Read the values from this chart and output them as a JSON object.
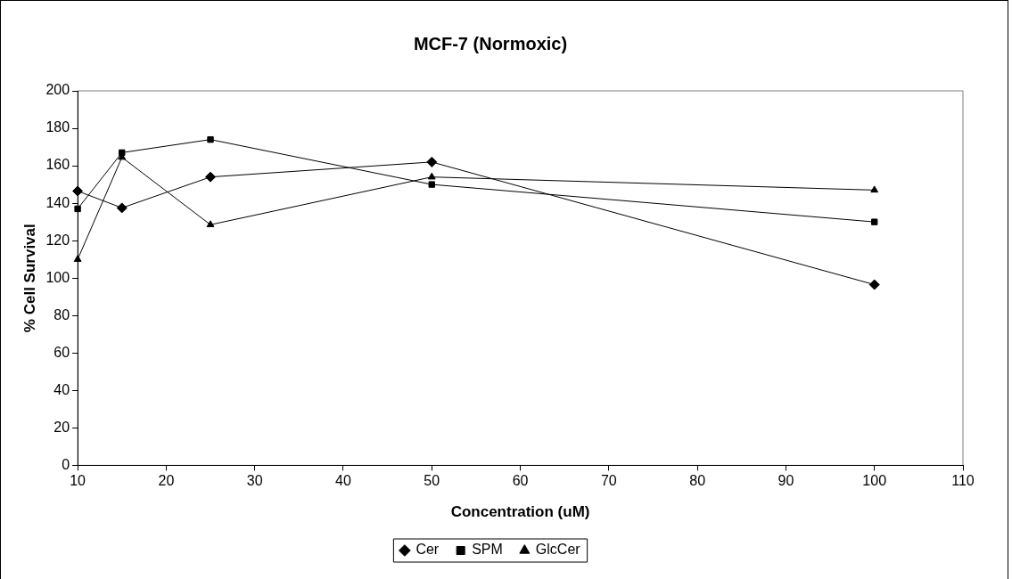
{
  "chart_data": {
    "type": "line",
    "title": "MCF-7 (Normoxic)",
    "xlabel": "Concentration (uM)",
    "ylabel": "% Cell Survival",
    "x": [
      10,
      15,
      25,
      50,
      100
    ],
    "series": [
      {
        "name": "Cer",
        "color": "#000000",
        "marker": "diamond",
        "values": [
          146.5,
          137.5,
          154,
          162,
          96.5
        ]
      },
      {
        "name": "SPM",
        "color": "#000000",
        "marker": "square",
        "values": [
          137,
          167,
          174,
          150,
          130
        ]
      },
      {
        "name": "GlcCer",
        "color": "#000000",
        "marker": "triangle",
        "values": [
          110,
          164.5,
          128.5,
          154,
          147
        ]
      }
    ],
    "xlim": [
      10,
      110
    ],
    "xticks": [
      10,
      20,
      30,
      40,
      50,
      60,
      70,
      80,
      90,
      100,
      110
    ],
    "ylim": [
      0,
      200
    ],
    "yticks": [
      0,
      20,
      40,
      60,
      80,
      100,
      120,
      140,
      160,
      180,
      200
    ],
    "grid": false,
    "legend": "bottom",
    "line_style": "solid"
  }
}
